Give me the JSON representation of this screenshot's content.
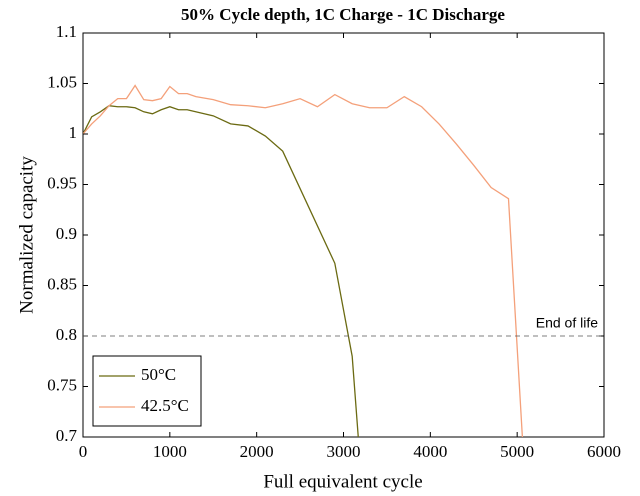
{
  "chart_data": {
    "type": "line",
    "title": "50% Cycle depth, 1C Charge - 1C Discharge",
    "x_label": "Full equivalent cycle",
    "y_label": "Normalized capacity",
    "xlim": [
      0,
      6000
    ],
    "xticks": [
      0,
      1000,
      2000,
      3000,
      4000,
      5000,
      6000
    ],
    "ylim": [
      0.7,
      1.1
    ],
    "yticks": [
      0.7,
      0.75,
      0.8,
      0.85,
      0.9,
      0.95,
      1,
      1.05,
      1.1
    ],
    "legend": "lower left",
    "series": [
      {
        "name": "50°C",
        "color": "#6b6a12",
        "x": [
          0,
          100,
          200,
          300,
          400,
          500,
          600,
          700,
          800,
          900,
          1000,
          1100,
          1200,
          1500,
          1700,
          1900,
          2100,
          2300,
          2900,
          3100,
          3170
        ],
        "values": [
          1.0,
          1.017,
          1.022,
          1.028,
          1.027,
          1.027,
          1.026,
          1.022,
          1.02,
          1.024,
          1.027,
          1.024,
          1.024,
          1.018,
          1.01,
          1.008,
          0.998,
          0.983,
          0.872,
          0.78,
          0.7
        ]
      },
      {
        "name": "42.5°C",
        "color": "#f4a07a",
        "x": [
          0,
          100,
          200,
          300,
          400,
          500,
          600,
          700,
          800,
          900,
          1000,
          1100,
          1200,
          1300,
          1500,
          1700,
          1900,
          2100,
          2300,
          2500,
          2700,
          2900,
          3100,
          3300,
          3500,
          3700,
          3900,
          4100,
          4300,
          4500,
          4700,
          4900,
          5060
        ],
        "values": [
          1.0,
          1.01,
          1.018,
          1.028,
          1.035,
          1.035,
          1.048,
          1.034,
          1.033,
          1.035,
          1.047,
          1.04,
          1.04,
          1.037,
          1.034,
          1.029,
          1.028,
          1.026,
          1.03,
          1.035,
          1.027,
          1.039,
          1.03,
          1.026,
          1.026,
          1.037,
          1.027,
          1.01,
          0.99,
          0.969,
          0.947,
          0.936,
          0.7
        ]
      }
    ],
    "annotations": [
      {
        "text": "End of life",
        "y": 0.8
      }
    ]
  }
}
